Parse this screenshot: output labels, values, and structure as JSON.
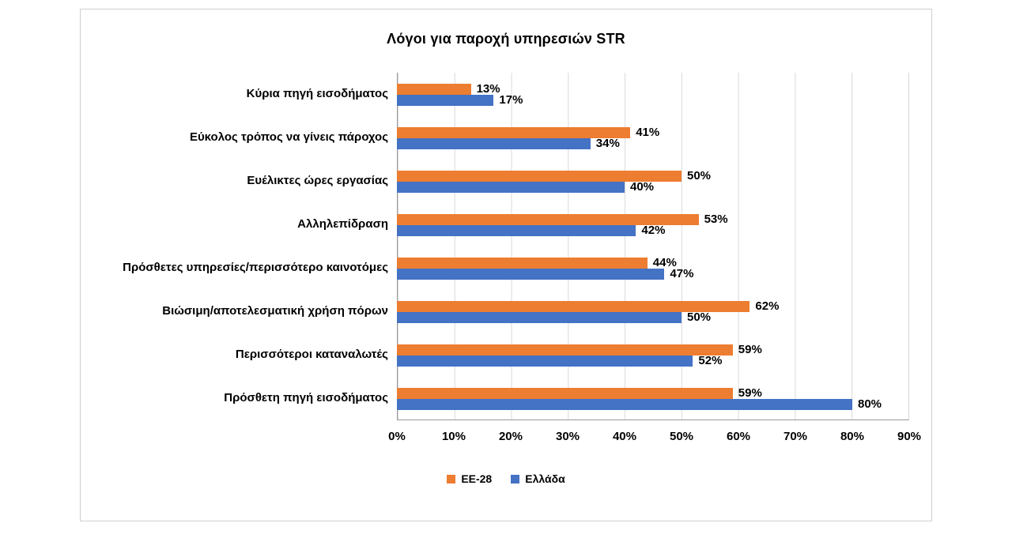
{
  "window": {
    "background": "#ffffff",
    "frame_border": "#cfcfcf"
  },
  "chart_data": {
    "type": "bar",
    "orientation": "horizontal",
    "title": "Λόγοι για παροχή υπηρεσιών STR",
    "categories": [
      "Κύρια πηγή εισοδήματος",
      "Εύκολος τρόπος να γίνεις πάροχος",
      "Ευέλικτες ώρες εργασίας",
      "Αλληλεπίδραση",
      "Πρόσθετες υπηρεσίες/περισσότερο καινοτόμες",
      "Βιώσιμη/αποτελεσματική χρήση πόρων",
      "Περισσότεροι καταναλωτές",
      "Πρόσθετη πηγή εισοδήματος"
    ],
    "series": [
      {
        "id": "ee-28",
        "name": "EE-28",
        "color": "#ED7D31",
        "values": [
          13,
          41,
          50,
          53,
          44,
          62,
          59,
          59
        ]
      },
      {
        "id": "greece",
        "name": "Ελλάδα",
        "color": "#4472C4",
        "values": [
          17,
          34,
          40,
          42,
          47,
          50,
          52,
          80
        ]
      }
    ],
    "x_axis": {
      "min": 0,
      "max": 90,
      "tick_step": 10,
      "ticks": [
        "0%",
        "10%",
        "20%",
        "30%",
        "40%",
        "50%",
        "60%",
        "70%",
        "80%",
        "90%"
      ]
    },
    "data_label_suffix": "%",
    "grid": true,
    "legend_position": "bottom"
  }
}
